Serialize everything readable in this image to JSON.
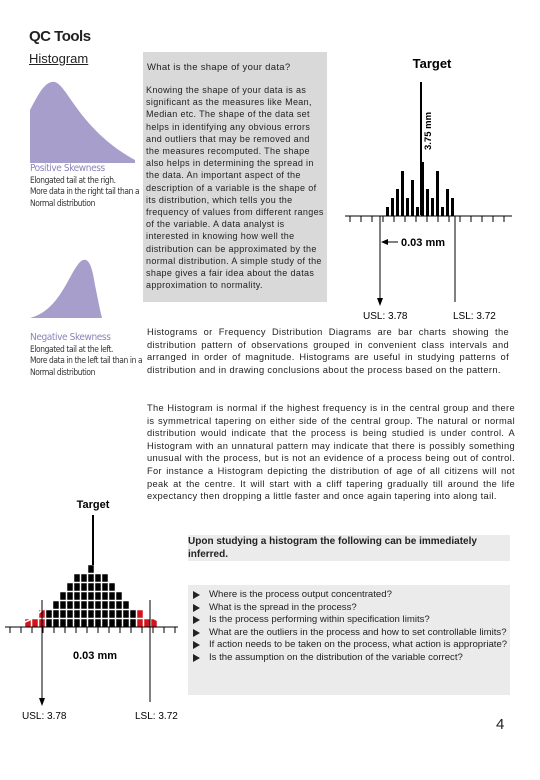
{
  "header": {
    "title": "QC Tools",
    "subtitle": "Histogram"
  },
  "shape_box": {
    "question": "What is the shape of your data?",
    "body": "Knowing the shape of your data is as significant as the measures like Mean, Median etc. The shape of the data set helps in identifying any obvious errors and outliers that may be removed and the measures recomputed. The shape also helps in determining the spread in the data. An important aspect of the description of a variable is the shape of its distribution, which tells you the frequency of values from different ranges of the variable. A data analyst is interested in knowing how well the distribution can be approximated by the normal distribution. A simple study of the shape gives a fair idea about the datas approximation to normality."
  },
  "positive_skew": {
    "title": "Positive Skewness",
    "lines": [
      "Elongated tail at the righ.",
      "More data in the right tail than a",
      "Normal distribution"
    ]
  },
  "negative_skew": {
    "title": "Negative Skewness",
    "lines": [
      "Elongated tail at the left.",
      "More data in the left tail than in a",
      "Normal distribution"
    ]
  },
  "top_diagram": {
    "target": "Target",
    "height": "3.75 mm",
    "width": "0.03 mm",
    "usl": "USL: 3.78",
    "lsl": "LSL: 3.72"
  },
  "paragraphs": [
    "Histograms or Frequency Distribution Diagrams are bar charts showing the distribution pattern of observations grouped in convenient class intervals and arranged in order of magnitude. Histograms are useful in studying patterns of distribution and in drawing conclusions about the process based on the pattern.",
    "The Histogram is normal if the highest frequency is in the central group and there is symmetrical tapering on either side of the central group. The natural or normal distribution would indicate that the process is being studied is under control. A Histogram with an unnatural pattern may indicate that there is possibly something unusual with the process, but is not an evidence of a process being out of control. For instance a Histogram depicting the distribution of age of all citizens will not peak at the centre. It will start with a cliff tapering gradually till around the life expectancy then dropping a little faster and once again tapering into along tail."
  ],
  "bottom_diagram": {
    "target": "Target",
    "width": "0.03 mm",
    "usl": "USL: 3.78",
    "lsl": "LSL: 3.72"
  },
  "inference": {
    "heading": "Upon studying a histogram the following can be immediately inferred.",
    "items": [
      "Where is the process output concentrated?",
      "What is the spread in the process?",
      "Is the process performing within specification limits?",
      "What are the outliers in the process and how to set controllable limits?",
      "If action needs to be taken on the process, what action is appropriate?",
      "Is the assumption on the distribution of the variable correct?"
    ]
  },
  "page_number": "4"
}
